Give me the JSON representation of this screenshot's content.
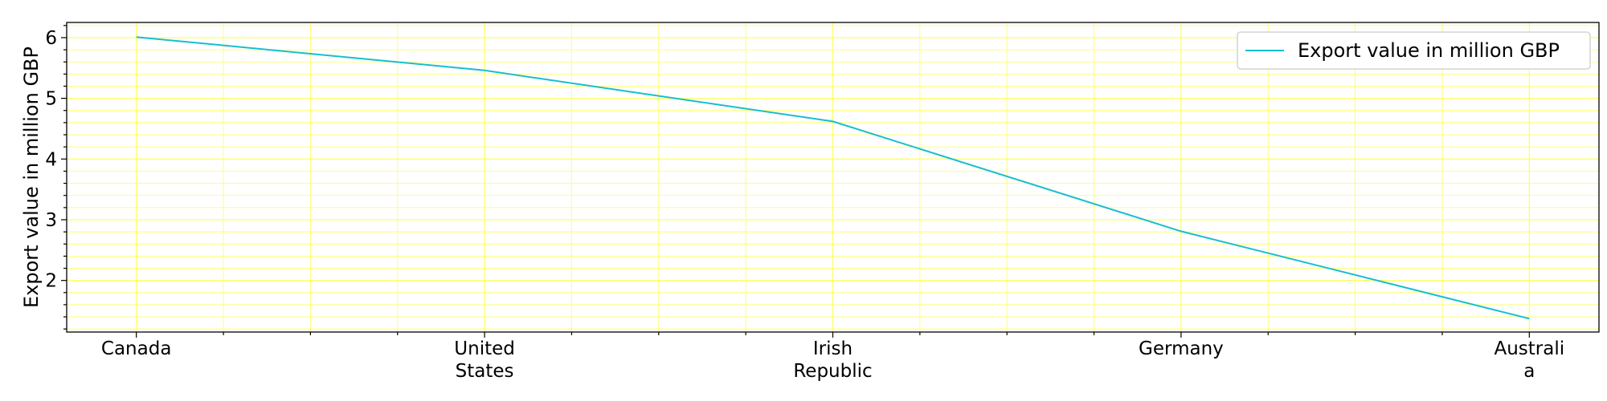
{
  "chart_data": {
    "type": "line",
    "categories": [
      "Canada",
      "United States",
      "Irish Republic",
      "Germany",
      "Australia"
    ],
    "category_label_lines": [
      [
        "Canada"
      ],
      [
        "United",
        "States"
      ],
      [
        "Irish",
        "Republic"
      ],
      [
        "Germany"
      ],
      [
        "Australi",
        "a"
      ]
    ],
    "series": [
      {
        "name": "Export value in million GBP",
        "values": [
          6.01,
          5.46,
          4.62,
          2.81,
          1.37
        ],
        "color": "#17becf"
      }
    ],
    "title": "",
    "xlabel": "",
    "ylabel": "Export value in million GBP",
    "ylim": [
      1.15,
      6.25
    ],
    "yticks": [
      2,
      3,
      4,
      5,
      6
    ],
    "grid": true,
    "grid_color": "#ffff66",
    "legend_position": "top-right"
  }
}
